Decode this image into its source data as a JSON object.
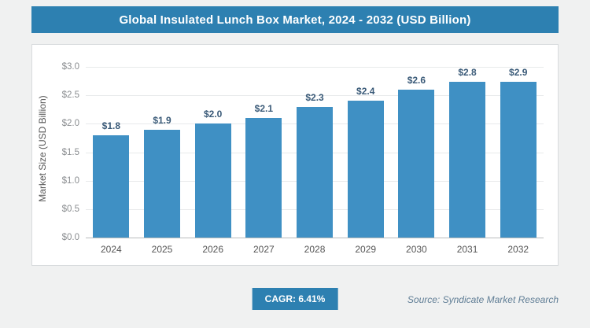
{
  "header": {
    "title": "Global Insulated Lunch Box Market, 2024 - 2032 (USD Billion)"
  },
  "chart_data": {
    "type": "bar",
    "title": "Global Insulated Lunch Box Market, 2024 - 2032 (USD Billion)",
    "categories": [
      "2024",
      "2025",
      "2026",
      "2027",
      "2028",
      "2029",
      "2030",
      "2031",
      "2032"
    ],
    "values": [
      1.8,
      1.9,
      2.0,
      2.1,
      2.3,
      2.4,
      2.6,
      2.8,
      2.9
    ],
    "value_labels": [
      "$1.8",
      "$1.9",
      "$2.0",
      "$2.1",
      "$2.3",
      "$2.4",
      "$2.6",
      "$2.8",
      "$2.9"
    ],
    "xlabel": "",
    "ylabel": "Market Size (USD Billion)",
    "ylim": [
      0,
      3.0
    ],
    "ytick_labels": [
      "$3.0",
      "$2.5",
      "$2.0",
      "$1.5",
      "$1.0",
      "$0.5",
      "$0.0"
    ],
    "grid": true,
    "legend": "none",
    "bar_color": "#3f90c4"
  },
  "footer": {
    "cagr_label": "CAGR: 6.41%",
    "source": "Source: Syndicate Market Research"
  },
  "colors": {
    "banner_bg": "#2d80b1",
    "banner_text": "#ffffff",
    "badge_bg": "#2d80b1",
    "value_label": "#3a5a78",
    "page_bg": "#f0f1f1",
    "card_bg": "#ffffff"
  }
}
